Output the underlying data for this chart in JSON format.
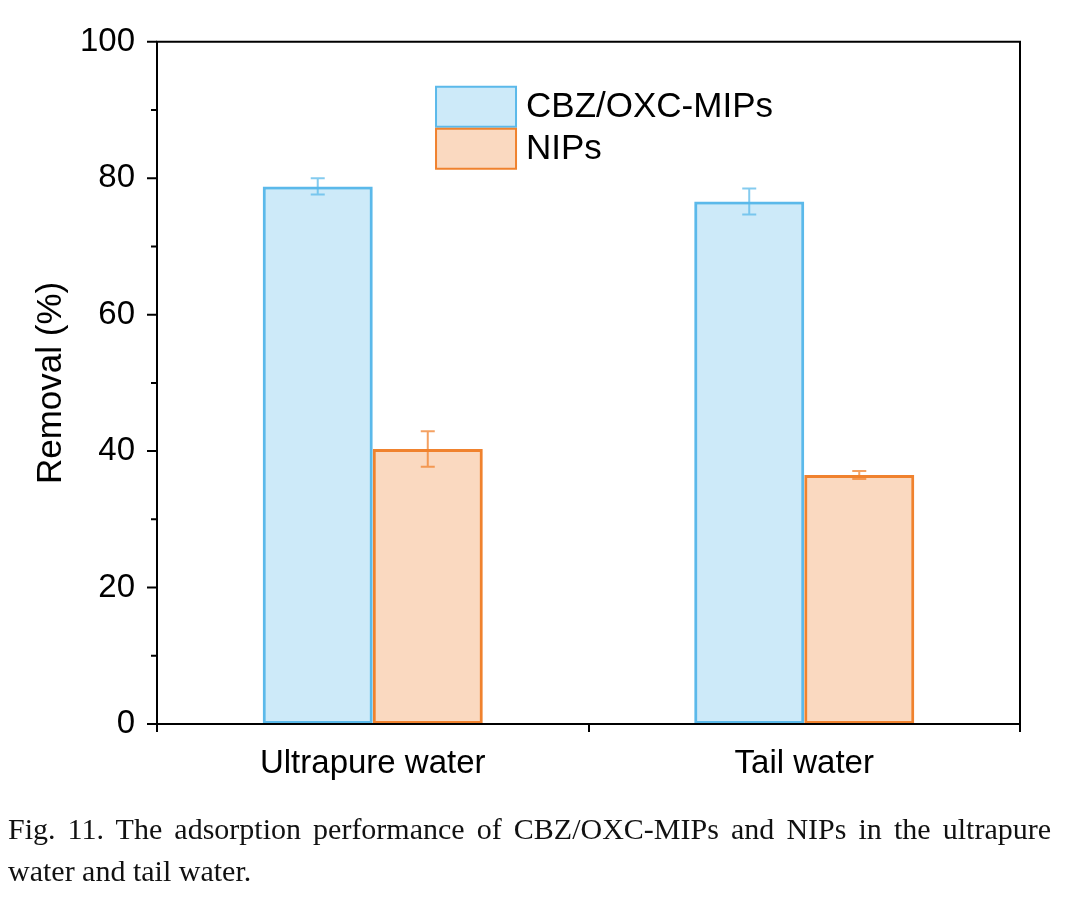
{
  "chart_data": {
    "type": "bar",
    "ylabel": "Removal (%)",
    "categories": [
      "Ultrapure water",
      "Tail water"
    ],
    "series": [
      {
        "name": "CBZ/OXC-MIPs",
        "color": "#5bb9ea",
        "values": [
          78.8,
          76.6
        ],
        "errors": [
          1.2,
          1.9
        ]
      },
      {
        "name": "NIPs",
        "color": "#f0822e",
        "values": [
          40.3,
          36.5
        ],
        "errors": [
          2.6,
          0.6
        ]
      }
    ],
    "ylim": [
      0,
      100
    ],
    "yticks": [
      0,
      {
        "value": 10,
        "label": null
      },
      20,
      {
        "value": 30,
        "label": null
      },
      40,
      {
        "value": 50,
        "label": null
      },
      60,
      {
        "value": 70,
        "label": null
      },
      80,
      {
        "value": 90,
        "label": null
      },
      100
    ],
    "legend": "top",
    "annotations": [
      "Fig. 11. The adsorption performance of CBZ/OXC-MIPs and NIPs in the ultrapure water and tail water."
    ]
  }
}
